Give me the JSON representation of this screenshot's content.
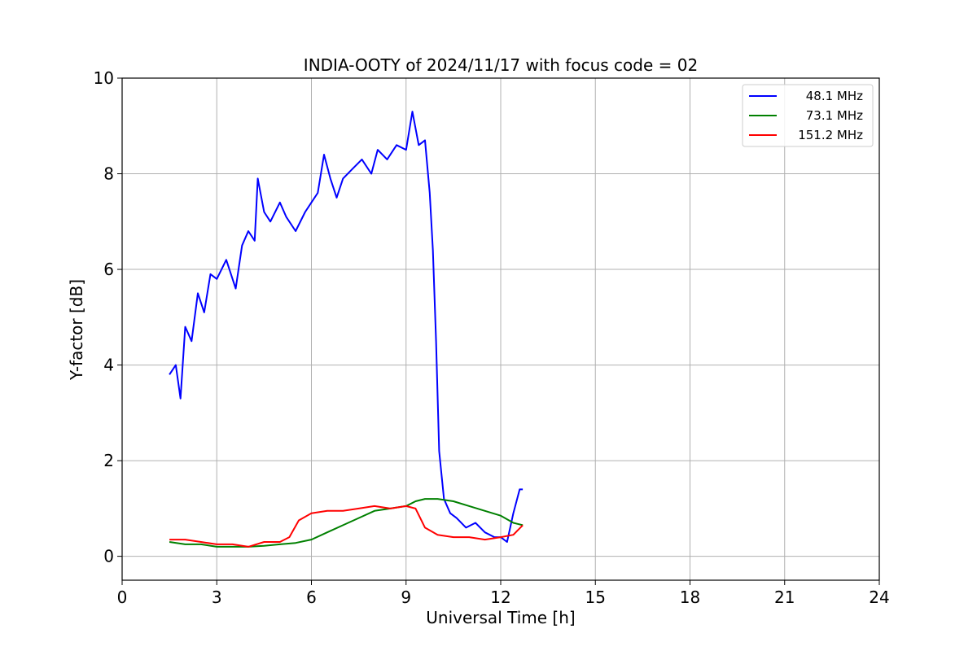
{
  "chart_data": {
    "type": "line",
    "title": "INDIA-OOTY of 2024/11/17 with focus code = 02",
    "xlabel": "Universal Time [h]",
    "ylabel": "Y-factor [dB]",
    "xlim": [
      0,
      24
    ],
    "ylim": [
      -0.5,
      10
    ],
    "xticks": [
      0,
      3,
      6,
      9,
      12,
      15,
      18,
      21,
      24
    ],
    "yticks": [
      0,
      2,
      4,
      6,
      8,
      10
    ],
    "grid": true,
    "legend_position": "top-right",
    "series": [
      {
        "name": "48.1 MHz",
        "color": "#0000ff",
        "points": [
          [
            1.5,
            3.8
          ],
          [
            1.7,
            4.0
          ],
          [
            1.85,
            3.3
          ],
          [
            2.0,
            4.8
          ],
          [
            2.2,
            4.5
          ],
          [
            2.4,
            5.5
          ],
          [
            2.6,
            5.1
          ],
          [
            2.8,
            5.9
          ],
          [
            3.0,
            5.8
          ],
          [
            3.3,
            6.2
          ],
          [
            3.6,
            5.6
          ],
          [
            3.8,
            6.5
          ],
          [
            4.0,
            6.8
          ],
          [
            4.2,
            6.6
          ],
          [
            4.3,
            7.9
          ],
          [
            4.5,
            7.2
          ],
          [
            4.7,
            7.0
          ],
          [
            5.0,
            7.4
          ],
          [
            5.2,
            7.1
          ],
          [
            5.5,
            6.8
          ],
          [
            5.8,
            7.2
          ],
          [
            6.0,
            7.4
          ],
          [
            6.2,
            7.6
          ],
          [
            6.4,
            8.4
          ],
          [
            6.6,
            7.9
          ],
          [
            6.8,
            7.5
          ],
          [
            7.0,
            7.9
          ],
          [
            7.3,
            8.1
          ],
          [
            7.6,
            8.3
          ],
          [
            7.9,
            8.0
          ],
          [
            8.1,
            8.5
          ],
          [
            8.4,
            8.3
          ],
          [
            8.7,
            8.6
          ],
          [
            9.0,
            8.5
          ],
          [
            9.2,
            9.3
          ],
          [
            9.4,
            8.6
          ],
          [
            9.6,
            8.7
          ],
          [
            9.75,
            7.6
          ],
          [
            9.85,
            6.4
          ],
          [
            9.95,
            4.5
          ],
          [
            10.05,
            2.2
          ],
          [
            10.2,
            1.2
          ],
          [
            10.4,
            0.9
          ],
          [
            10.6,
            0.8
          ],
          [
            10.9,
            0.6
          ],
          [
            11.2,
            0.7
          ],
          [
            11.5,
            0.5
          ],
          [
            11.8,
            0.4
          ],
          [
            12.0,
            0.4
          ],
          [
            12.2,
            0.3
          ],
          [
            12.4,
            0.9
          ],
          [
            12.6,
            1.4
          ],
          [
            12.7,
            1.4
          ]
        ]
      },
      {
        "name": "73.1 MHz",
        "color": "#008000",
        "points": [
          [
            1.5,
            0.3
          ],
          [
            2.0,
            0.25
          ],
          [
            2.5,
            0.25
          ],
          [
            3.0,
            0.2
          ],
          [
            3.5,
            0.2
          ],
          [
            4.0,
            0.2
          ],
          [
            4.5,
            0.22
          ],
          [
            5.0,
            0.25
          ],
          [
            5.5,
            0.28
          ],
          [
            6.0,
            0.35
          ],
          [
            6.5,
            0.5
          ],
          [
            7.0,
            0.65
          ],
          [
            7.5,
            0.8
          ],
          [
            8.0,
            0.95
          ],
          [
            8.5,
            1.0
          ],
          [
            9.0,
            1.05
          ],
          [
            9.3,
            1.15
          ],
          [
            9.6,
            1.2
          ],
          [
            10.0,
            1.2
          ],
          [
            10.5,
            1.15
          ],
          [
            11.0,
            1.05
          ],
          [
            11.5,
            0.95
          ],
          [
            12.0,
            0.85
          ],
          [
            12.4,
            0.7
          ],
          [
            12.7,
            0.65
          ]
        ]
      },
      {
        "name": "151.2 MHz",
        "color": "#ff0000",
        "points": [
          [
            1.5,
            0.35
          ],
          [
            2.0,
            0.35
          ],
          [
            2.5,
            0.3
          ],
          [
            3.0,
            0.25
          ],
          [
            3.5,
            0.25
          ],
          [
            4.0,
            0.2
          ],
          [
            4.5,
            0.3
          ],
          [
            5.0,
            0.3
          ],
          [
            5.3,
            0.4
          ],
          [
            5.6,
            0.75
          ],
          [
            6.0,
            0.9
          ],
          [
            6.5,
            0.95
          ],
          [
            7.0,
            0.95
          ],
          [
            7.5,
            1.0
          ],
          [
            8.0,
            1.05
          ],
          [
            8.5,
            1.0
          ],
          [
            9.0,
            1.05
          ],
          [
            9.3,
            1.0
          ],
          [
            9.6,
            0.6
          ],
          [
            10.0,
            0.45
          ],
          [
            10.5,
            0.4
          ],
          [
            11.0,
            0.4
          ],
          [
            11.5,
            0.35
          ],
          [
            12.0,
            0.4
          ],
          [
            12.4,
            0.45
          ],
          [
            12.7,
            0.65
          ]
        ]
      }
    ]
  }
}
